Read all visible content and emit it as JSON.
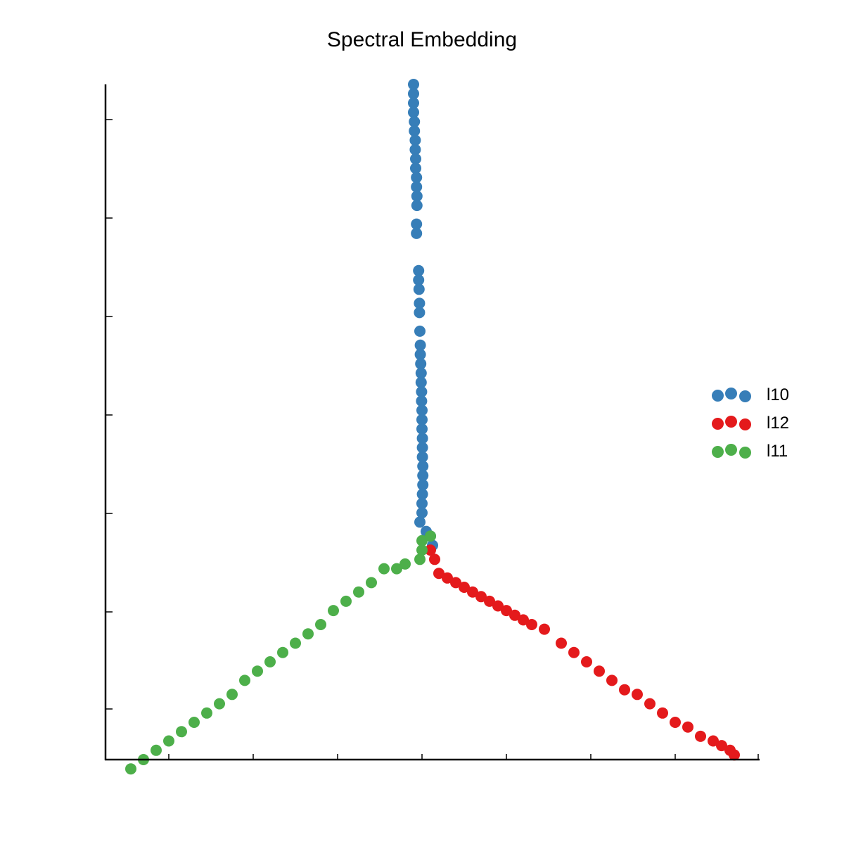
{
  "chart_data": {
    "type": "scatter",
    "title": "Spectral Embedding",
    "xlabel": "",
    "ylabel": "",
    "xlim": [
      -0.76,
      0.79
    ],
    "ylim": [
      -0.95,
      0.5
    ],
    "grid": false,
    "legend_position": "right",
    "series": [
      {
        "name": "l10",
        "color": "#377eb8",
        "points": [
          [
            -0.03,
            0.5
          ],
          [
            -0.03,
            0.48
          ],
          [
            -0.03,
            0.46
          ],
          [
            -0.03,
            0.44
          ],
          [
            -0.028,
            0.42
          ],
          [
            -0.028,
            0.4
          ],
          [
            -0.026,
            0.38
          ],
          [
            -0.026,
            0.36
          ],
          [
            -0.025,
            0.34
          ],
          [
            -0.025,
            0.32
          ],
          [
            -0.023,
            0.3
          ],
          [
            -0.023,
            0.28
          ],
          [
            -0.022,
            0.26
          ],
          [
            -0.022,
            0.24
          ],
          [
            -0.023,
            0.2
          ],
          [
            -0.023,
            0.18
          ],
          [
            -0.018,
            0.1
          ],
          [
            -0.018,
            0.08
          ],
          [
            -0.017,
            0.06
          ],
          [
            -0.016,
            0.03
          ],
          [
            -0.016,
            0.01
          ],
          [
            -0.015,
            -0.03
          ],
          [
            -0.014,
            -0.06
          ],
          [
            -0.014,
            -0.08
          ],
          [
            -0.013,
            -0.1
          ],
          [
            -0.012,
            -0.12
          ],
          [
            -0.012,
            -0.14
          ],
          [
            -0.011,
            -0.16
          ],
          [
            -0.011,
            -0.18
          ],
          [
            -0.01,
            -0.2
          ],
          [
            -0.01,
            -0.22
          ],
          [
            -0.01,
            -0.24
          ],
          [
            -0.009,
            -0.26
          ],
          [
            -0.009,
            -0.28
          ],
          [
            -0.009,
            -0.3
          ],
          [
            -0.008,
            -0.32
          ],
          [
            -0.008,
            -0.34
          ],
          [
            -0.008,
            -0.36
          ],
          [
            -0.009,
            -0.38
          ],
          [
            -0.01,
            -0.4
          ],
          [
            -0.01,
            -0.42
          ],
          [
            -0.015,
            -0.44
          ],
          [
            0.0,
            -0.46
          ],
          [
            0.01,
            -0.47
          ],
          [
            0.015,
            -0.49
          ]
        ]
      },
      {
        "name": "l12",
        "color": "#e41a1c",
        "points": [
          [
            0.01,
            -0.5
          ],
          [
            0.02,
            -0.52
          ],
          [
            0.03,
            -0.55
          ],
          [
            0.05,
            -0.56
          ],
          [
            0.07,
            -0.57
          ],
          [
            0.09,
            -0.58
          ],
          [
            0.11,
            -0.59
          ],
          [
            0.13,
            -0.6
          ],
          [
            0.15,
            -0.61
          ],
          [
            0.17,
            -0.62
          ],
          [
            0.19,
            -0.63
          ],
          [
            0.21,
            -0.64
          ],
          [
            0.23,
            -0.65
          ],
          [
            0.25,
            -0.66
          ],
          [
            0.28,
            -0.67
          ],
          [
            0.32,
            -0.7
          ],
          [
            0.35,
            -0.72
          ],
          [
            0.38,
            -0.74
          ],
          [
            0.41,
            -0.76
          ],
          [
            0.44,
            -0.78
          ],
          [
            0.47,
            -0.8
          ],
          [
            0.5,
            -0.81
          ],
          [
            0.53,
            -0.83
          ],
          [
            0.56,
            -0.85
          ],
          [
            0.59,
            -0.87
          ],
          [
            0.62,
            -0.88
          ],
          [
            0.65,
            -0.9
          ],
          [
            0.68,
            -0.91
          ],
          [
            0.7,
            -0.92
          ],
          [
            0.72,
            -0.93
          ],
          [
            0.73,
            -0.94
          ]
        ]
      },
      {
        "name": "l11",
        "color": "#4daf4a",
        "points": [
          [
            -0.01,
            -0.5
          ],
          [
            -0.015,
            -0.52
          ],
          [
            0.01,
            -0.47
          ],
          [
            -0.01,
            -0.48
          ],
          [
            -0.05,
            -0.53
          ],
          [
            -0.07,
            -0.54
          ],
          [
            -0.1,
            -0.54
          ],
          [
            -0.13,
            -0.57
          ],
          [
            -0.16,
            -0.59
          ],
          [
            -0.19,
            -0.61
          ],
          [
            -0.22,
            -0.63
          ],
          [
            -0.25,
            -0.66
          ],
          [
            -0.28,
            -0.68
          ],
          [
            -0.31,
            -0.7
          ],
          [
            -0.34,
            -0.72
          ],
          [
            -0.37,
            -0.74
          ],
          [
            -0.4,
            -0.76
          ],
          [
            -0.43,
            -0.78
          ],
          [
            -0.46,
            -0.81
          ],
          [
            -0.49,
            -0.83
          ],
          [
            -0.52,
            -0.85
          ],
          [
            -0.55,
            -0.87
          ],
          [
            -0.58,
            -0.89
          ],
          [
            -0.61,
            -0.91
          ],
          [
            -0.64,
            -0.93
          ],
          [
            -0.67,
            -0.95
          ],
          [
            -0.7,
            -0.97
          ]
        ]
      }
    ]
  }
}
